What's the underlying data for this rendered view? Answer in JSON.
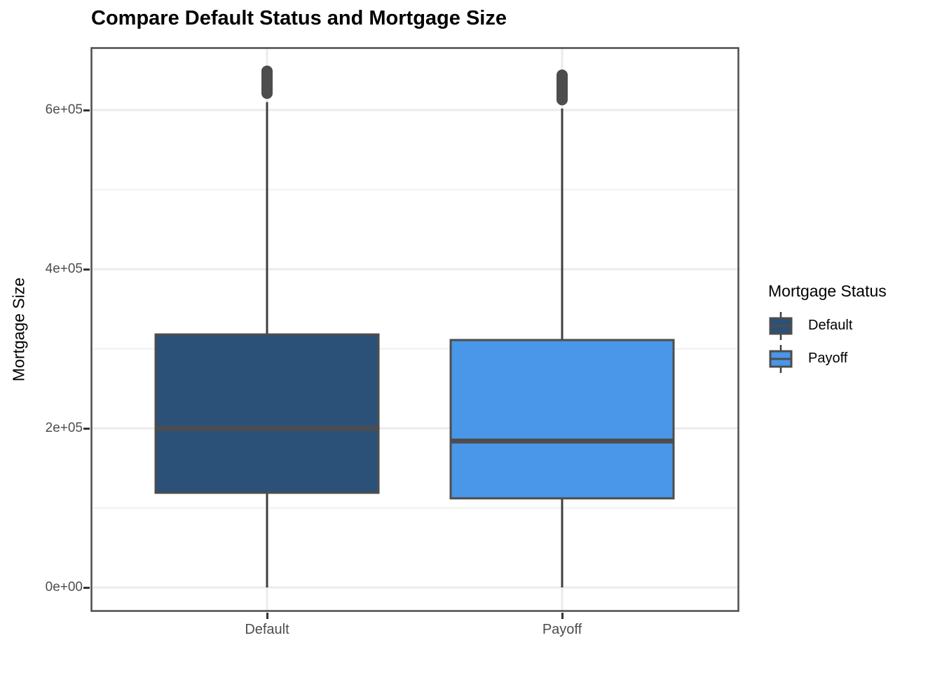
{
  "chart_data": {
    "type": "boxplot",
    "title": "Compare Default Status and Mortgage Size",
    "xlabel": "",
    "ylabel": "Mortgage Size",
    "categories": [
      "Default",
      "Payoff"
    ],
    "y_ticks": [
      {
        "value": 0,
        "label": "0e+00"
      },
      {
        "value": 200000,
        "label": "2e+05"
      },
      {
        "value": 400000,
        "label": "4e+05"
      },
      {
        "value": 600000,
        "label": "6e+05"
      }
    ],
    "y_minor_ticks": [
      100000,
      300000,
      500000
    ],
    "ylim": [
      -31000,
      680000
    ],
    "grid": true,
    "legend": {
      "title": "Mortgage Status",
      "position": "right",
      "entries": [
        "Default",
        "Payoff"
      ]
    },
    "series": [
      {
        "name": "Default",
        "fill": "#2B5178",
        "min": 0,
        "q1": 119000,
        "median": 200000,
        "q3": 318000,
        "whisker_high": 610000,
        "outliers_range": [
          614000,
          656000
        ]
      },
      {
        "name": "Payoff",
        "fill": "#4A96E8",
        "min": 0,
        "q1": 112000,
        "median": 184000,
        "q3": 311000,
        "whisker_high": 602000,
        "outliers_range": [
          606000,
          651000
        ]
      }
    ],
    "colors": {
      "box_stroke": "#4D4D4D",
      "median": "#4D4D4D",
      "whisker": "#3F3F3F",
      "outlier": "#4D4D4D",
      "grid_major": "#EBEBEB",
      "grid_minor": "#F1F1F1",
      "panel_border": "#4D4D4D",
      "axis_text": "#4D4D4D",
      "tick_mark": "#333333"
    }
  }
}
